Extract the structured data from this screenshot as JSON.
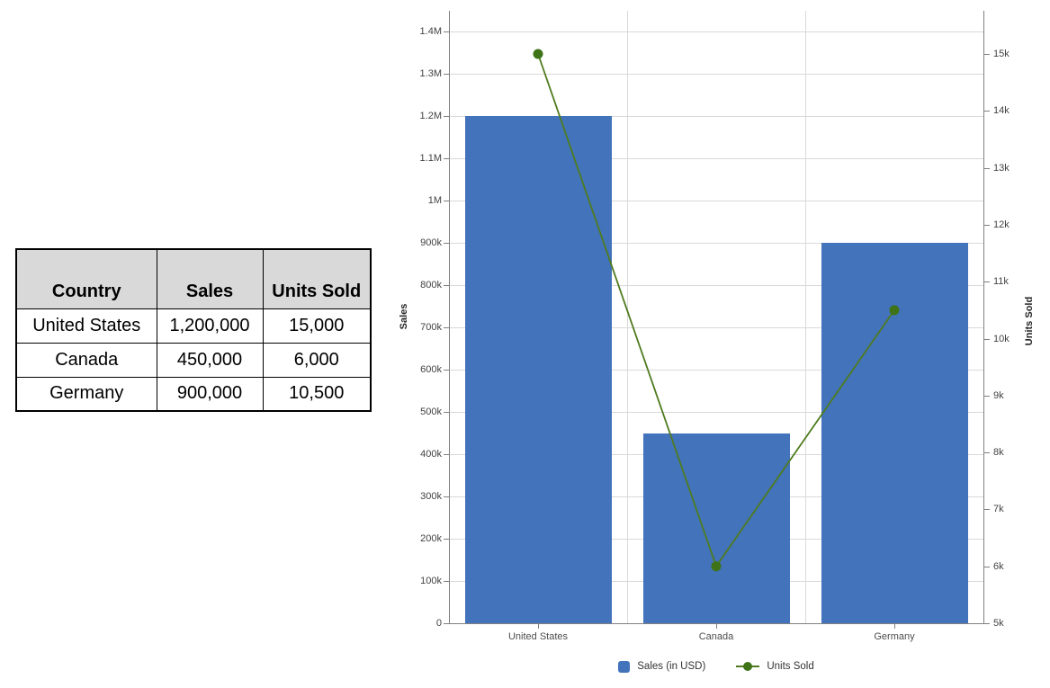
{
  "table": {
    "headers": [
      "Country",
      "Sales",
      "Units Sold"
    ],
    "rows": [
      [
        "United States",
        "1,200,000",
        "15,000"
      ],
      [
        "Canada",
        "450,000",
        "6,000"
      ],
      [
        "Germany",
        "900,000",
        "10,500"
      ]
    ]
  },
  "chart_data": {
    "type": "combo-bar-line-dual-axis",
    "categories": [
      "United States",
      "Canada",
      "Germany"
    ],
    "series": [
      {
        "name": "Sales (in USD)",
        "type": "bar",
        "axis": "left",
        "values": [
          1200000,
          450000,
          900000
        ],
        "color": "#4273bb"
      },
      {
        "name": "Units Sold",
        "type": "line",
        "axis": "right",
        "values": [
          15000,
          6000,
          10500
        ],
        "color": "#4f7b1e",
        "marker_color": "#3e7317"
      }
    ],
    "left_axis": {
      "title": "Sales",
      "tick_values": [
        0,
        100000,
        200000,
        300000,
        400000,
        500000,
        600000,
        700000,
        800000,
        900000,
        1000000,
        1100000,
        1200000,
        1300000,
        1400000
      ],
      "tick_labels": [
        "0",
        "100k",
        "200k",
        "300k",
        "400k",
        "500k",
        "600k",
        "700k",
        "800k",
        "900k",
        "1M",
        "1.1M",
        "1.2M",
        "1.3M",
        "1.4M"
      ],
      "range": [
        0,
        1450000
      ]
    },
    "right_axis": {
      "title": "Units Sold",
      "tick_values": [
        5000,
        6000,
        7000,
        8000,
        9000,
        10000,
        11000,
        12000,
        13000,
        14000,
        15000
      ],
      "tick_labels": [
        "5k",
        "6k",
        "7k",
        "8k",
        "9k",
        "10k",
        "11k",
        "12k",
        "13k",
        "14k",
        "15k"
      ],
      "range": [
        5000,
        15800
      ]
    },
    "legend": {
      "position": "bottom",
      "entries": [
        "Sales (in USD)",
        "Units Sold"
      ]
    },
    "grid": true,
    "colors": {
      "bar": "#4273bb",
      "line": "#4f7b1e",
      "marker": "#3e7317",
      "gridline": "#d9d9d9",
      "axis_line": "#808080",
      "tick_text": "#424242",
      "table_header_bg": "#d9d9d9"
    }
  }
}
